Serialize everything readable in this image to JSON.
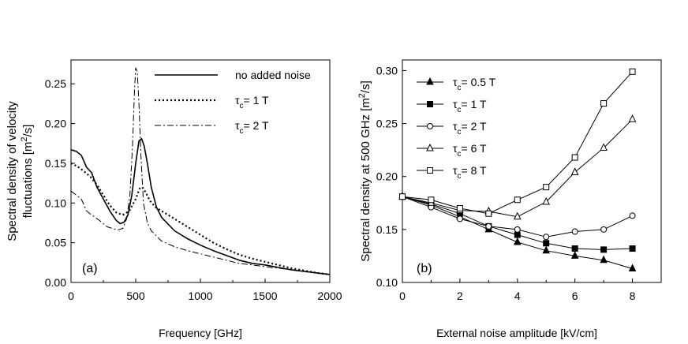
{
  "chart_data": [
    {
      "type": "line",
      "panel_label": "(a)",
      "xlabel": "Frequency [GHz]",
      "ylabel_lines": [
        "Spectral density of velocity",
        "fluctuations  [m",
        "2",
        "/s]"
      ],
      "xlim": [
        0,
        2000
      ],
      "ylim": [
        0,
        0.28
      ],
      "xticks": [
        0,
        500,
        1000,
        1500,
        2000
      ],
      "yticks": [
        0.0,
        0.05,
        0.1,
        0.15,
        0.2,
        0.25
      ],
      "ytick_labels": [
        "0.00",
        "0.05",
        "0.10",
        "0.15",
        "0.20",
        "0.25"
      ],
      "legend": {
        "position": "top-right"
      },
      "series": [
        {
          "name": "no added noise",
          "style": "solid",
          "points": [
            [
              0,
              0.167
            ],
            [
              40,
              0.165
            ],
            [
              80,
              0.16
            ],
            [
              120,
              0.145
            ],
            [
              160,
              0.138
            ],
            [
              200,
              0.12
            ],
            [
              250,
              0.105
            ],
            [
              300,
              0.09
            ],
            [
              350,
              0.078
            ],
            [
              380,
              0.074
            ],
            [
              410,
              0.076
            ],
            [
              440,
              0.085
            ],
            [
              470,
              0.11
            ],
            [
              500,
              0.15
            ],
            [
              525,
              0.178
            ],
            [
              545,
              0.181
            ],
            [
              565,
              0.172
            ],
            [
              590,
              0.15
            ],
            [
              620,
              0.12
            ],
            [
              660,
              0.095
            ],
            [
              700,
              0.082
            ],
            [
              800,
              0.065
            ],
            [
              900,
              0.055
            ],
            [
              1000,
              0.047
            ],
            [
              1100,
              0.04
            ],
            [
              1200,
              0.034
            ],
            [
              1300,
              0.028
            ],
            [
              1400,
              0.024
            ],
            [
              1500,
              0.022
            ],
            [
              1600,
              0.019
            ],
            [
              1700,
              0.016
            ],
            [
              1800,
              0.014
            ],
            [
              1900,
              0.012
            ],
            [
              2000,
              0.01
            ]
          ]
        },
        {
          "name": "τ",
          "legend_tex": [
            "c",
            "= 1 T"
          ],
          "style": "dotted",
          "points": [
            [
              0,
              0.15
            ],
            [
              50,
              0.146
            ],
            [
              100,
              0.14
            ],
            [
              150,
              0.133
            ],
            [
              200,
              0.123
            ],
            [
              250,
              0.11
            ],
            [
              300,
              0.097
            ],
            [
              350,
              0.088
            ],
            [
              400,
              0.085
            ],
            [
              450,
              0.09
            ],
            [
              500,
              0.105
            ],
            [
              530,
              0.118
            ],
            [
              550,
              0.12
            ],
            [
              575,
              0.114
            ],
            [
              610,
              0.103
            ],
            [
              650,
              0.095
            ],
            [
              700,
              0.09
            ],
            [
              800,
              0.08
            ],
            [
              900,
              0.07
            ],
            [
              1000,
              0.06
            ],
            [
              1100,
              0.05
            ],
            [
              1200,
              0.042
            ],
            [
              1300,
              0.035
            ],
            [
              1400,
              0.03
            ],
            [
              1500,
              0.026
            ],
            [
              1600,
              0.022
            ],
            [
              1700,
              0.018
            ],
            [
              1800,
              0.015
            ],
            [
              1900,
              0.012
            ],
            [
              2000,
              0.01
            ]
          ]
        },
        {
          "name": "τ",
          "legend_tex": [
            "c",
            "= 2 T"
          ],
          "style": "dashdot",
          "points": [
            [
              0,
              0.115
            ],
            [
              40,
              0.11
            ],
            [
              80,
              0.105
            ],
            [
              120,
              0.09
            ],
            [
              160,
              0.085
            ],
            [
              220,
              0.078
            ],
            [
              280,
              0.07
            ],
            [
              320,
              0.068
            ],
            [
              360,
              0.066
            ],
            [
              400,
              0.068
            ],
            [
              430,
              0.08
            ],
            [
              455,
              0.11
            ],
            [
              475,
              0.17
            ],
            [
              490,
              0.24
            ],
            [
              500,
              0.27
            ],
            [
              512,
              0.265
            ],
            [
              525,
              0.225
            ],
            [
              540,
              0.16
            ],
            [
              560,
              0.1
            ],
            [
              590,
              0.075
            ],
            [
              620,
              0.065
            ],
            [
              700,
              0.052
            ],
            [
              800,
              0.045
            ],
            [
              900,
              0.04
            ],
            [
              1000,
              0.036
            ],
            [
              1100,
              0.032
            ],
            [
              1200,
              0.028
            ],
            [
              1300,
              0.024
            ],
            [
              1400,
              0.022
            ],
            [
              1500,
              0.02
            ],
            [
              1600,
              0.018
            ],
            [
              1700,
              0.016
            ],
            [
              1800,
              0.014
            ],
            [
              1900,
              0.012
            ],
            [
              2000,
              0.01
            ]
          ]
        }
      ]
    },
    {
      "type": "line",
      "panel_label": "(b)",
      "xlabel": "External noise amplitude [kV/cm]",
      "ylabel_lines": [
        "Spectral density at 500 GHz [m",
        "2",
        "/s]"
      ],
      "xlim": [
        0,
        9
      ],
      "ylim": [
        0.1,
        0.31
      ],
      "xticks": [
        0,
        2,
        4,
        6,
        8
      ],
      "yticks": [
        0.1,
        0.15,
        0.2,
        0.25,
        0.3
      ],
      "ytick_labels": [
        "0.10",
        "0.15",
        "0.20",
        "0.25",
        "0.30"
      ],
      "legend": {
        "position": "top-left"
      },
      "x": [
        0,
        1,
        2,
        3,
        4,
        5,
        6,
        7,
        8
      ],
      "series": [
        {
          "name": "τ",
          "legend_tex": [
            "c",
            "= 0.5 T"
          ],
          "marker": "triangle-filled",
          "values": [
            0.181,
            0.173,
            0.162,
            0.15,
            0.138,
            0.13,
            0.125,
            0.121,
            0.113
          ]
        },
        {
          "name": "τ",
          "legend_tex": [
            "c",
            "= 1 T"
          ],
          "marker": "square-filled",
          "values": [
            0.181,
            0.174,
            0.165,
            0.153,
            0.145,
            0.137,
            0.132,
            0.131,
            0.132
          ]
        },
        {
          "name": "τ",
          "legend_tex": [
            "c",
            "= 2 T"
          ],
          "marker": "circle-open",
          "values": [
            0.181,
            0.171,
            0.16,
            0.153,
            0.15,
            0.143,
            0.148,
            0.15,
            0.163
          ]
        },
        {
          "name": "τ",
          "legend_tex": [
            "c",
            "= 6 T"
          ],
          "marker": "triangle-open",
          "values": [
            0.181,
            0.175,
            0.168,
            0.167,
            0.162,
            0.176,
            0.204,
            0.227,
            0.254
          ]
        },
        {
          "name": "τ",
          "legend_tex": [
            "c",
            "= 8 T"
          ],
          "marker": "square-open",
          "values": [
            0.181,
            0.178,
            0.17,
            0.165,
            0.178,
            0.19,
            0.218,
            0.269,
            0.299
          ]
        }
      ]
    }
  ]
}
